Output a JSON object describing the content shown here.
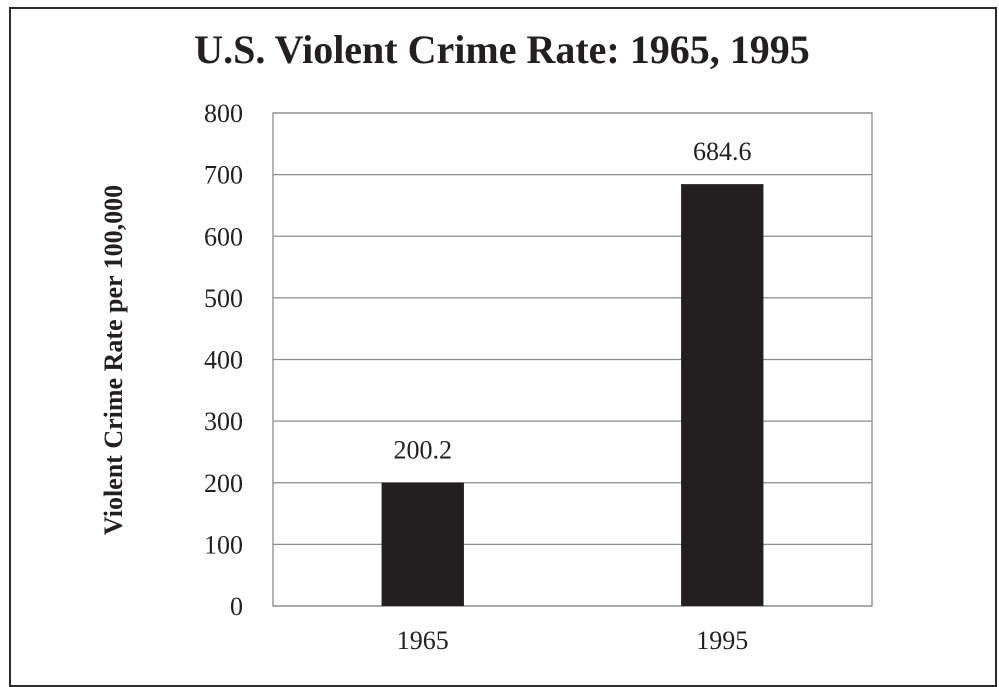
{
  "chart_data": {
    "type": "bar",
    "title": "U.S. Violent Crime Rate: 1965, 1995",
    "xlabel": "",
    "ylabel": "Violent Crime Rate per 100,000",
    "categories": [
      "1965",
      "1995"
    ],
    "values": [
      200.2,
      684.6
    ],
    "data_labels": [
      "200.2",
      "684.6"
    ],
    "ylim": [
      0,
      800
    ],
    "yticks": [
      0,
      100,
      200,
      300,
      400,
      500,
      600,
      700,
      800
    ],
    "ytick_labels": [
      "0",
      "100",
      "200",
      "300",
      "400",
      "500",
      "600",
      "700",
      "800"
    ],
    "grid": true,
    "legend": "none",
    "bar_color": "#231f20"
  }
}
